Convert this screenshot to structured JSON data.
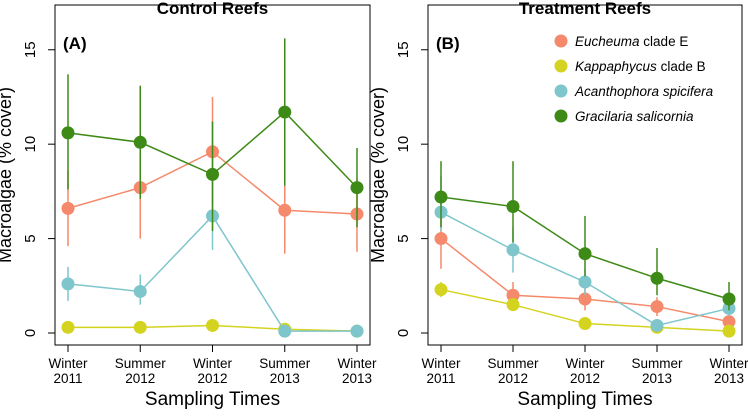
{
  "chart_data": [
    {
      "type": "line",
      "panel_label": "(A)",
      "title": "Control Reefs",
      "xlabel": "Sampling Times",
      "ylabel": "Macroalgae (% cover)",
      "ylim": [
        0,
        17
      ],
      "yticks": [
        0,
        5,
        10,
        15
      ],
      "categories": [
        {
          "line1": "Winter",
          "line2": "2011"
        },
        {
          "line1": "Summer",
          "line2": "2012"
        },
        {
          "line1": "Winter",
          "line2": "2012"
        },
        {
          "line1": "Summer",
          "line2": "2013"
        },
        {
          "line1": "Winter",
          "line2": "2013"
        }
      ],
      "series": [
        {
          "key": "eucheuma",
          "color": "#f4896b",
          "values": [
            6.6,
            7.7,
            9.6,
            6.5,
            6.3
          ],
          "lower": [
            4.6,
            5.0,
            6.8,
            4.2,
            4.3
          ],
          "upper": [
            8.6,
            10.3,
            12.5,
            8.7,
            8.2
          ]
        },
        {
          "key": "kappaphycus",
          "color": "#d4d31f",
          "values": [
            0.3,
            0.3,
            0.4,
            0.2,
            0.1
          ],
          "lower": [
            0.3,
            0.3,
            0.4,
            0.2,
            0.1
          ],
          "upper": [
            0.3,
            0.3,
            0.4,
            0.2,
            0.1
          ]
        },
        {
          "key": "acanthophora",
          "color": "#7ec6cc",
          "values": [
            2.6,
            2.2,
            6.2,
            0.1,
            0.1
          ],
          "lower": [
            1.7,
            1.5,
            4.4,
            0.1,
            0.1
          ],
          "upper": [
            3.5,
            3.1,
            8.0,
            0.1,
            0.3
          ]
        },
        {
          "key": "gracilaria",
          "color": "#3e8a17",
          "values": [
            10.6,
            10.1,
            8.4,
            11.7,
            7.7
          ],
          "lower": [
            7.6,
            7.1,
            5.4,
            7.8,
            5.6
          ],
          "upper": [
            13.7,
            13.1,
            11.2,
            15.6,
            9.8
          ]
        }
      ]
    },
    {
      "type": "line",
      "panel_label": "(B)",
      "title": "Treatment Reefs",
      "xlabel": "Sampling Times",
      "ylabel": "Macroalgae (% cover)",
      "ylim": [
        0,
        17
      ],
      "yticks": [
        0,
        5,
        10,
        15
      ],
      "categories": [
        {
          "line1": "Winter",
          "line2": "2011"
        },
        {
          "line1": "Summer",
          "line2": "2012"
        },
        {
          "line1": "Winter",
          "line2": "2012"
        },
        {
          "line1": "Summer",
          "line2": "2013"
        },
        {
          "line1": "Winter",
          "line2": "2013"
        }
      ],
      "legend": {
        "position": "top-right",
        "items": [
          {
            "key": "eucheuma",
            "italic": "Eucheuma",
            "plain": " clade E",
            "color": "#f4896b"
          },
          {
            "key": "kappaphycus",
            "italic": "Kappaphycus",
            "plain": " clade B",
            "color": "#d4d31f"
          },
          {
            "key": "acanthophora",
            "italic": "Acanthophora spicifera",
            "plain": "",
            "color": "#7ec6cc"
          },
          {
            "key": "gracilaria",
            "italic": "Gracilaria salicornia",
            "plain": "",
            "color": "#3e8a17"
          }
        ]
      },
      "series": [
        {
          "key": "eucheuma",
          "color": "#f4896b",
          "values": [
            5.0,
            2.0,
            1.8,
            1.4,
            0.6
          ],
          "lower": [
            3.4,
            1.3,
            1.2,
            0.9,
            0.4
          ],
          "upper": [
            6.6,
            2.7,
            2.4,
            1.9,
            0.8
          ]
        },
        {
          "key": "kappaphycus",
          "color": "#d4d31f",
          "values": [
            2.3,
            1.5,
            0.5,
            0.3,
            0.1
          ],
          "lower": [
            1.9,
            1.2,
            0.3,
            0.2,
            0.0
          ],
          "upper": [
            2.7,
            1.8,
            0.7,
            0.4,
            0.2
          ]
        },
        {
          "key": "acanthophora",
          "color": "#7ec6cc",
          "values": [
            6.4,
            4.4,
            2.7,
            0.4,
            1.3
          ],
          "lower": [
            5.4,
            3.2,
            2.0,
            0.2,
            0.9
          ],
          "upper": [
            8.3,
            5.6,
            3.4,
            0.6,
            1.7
          ]
        },
        {
          "key": "gracilaria",
          "color": "#3e8a17",
          "values": [
            7.2,
            6.7,
            4.2,
            2.9,
            1.8
          ],
          "lower": [
            5.6,
            4.8,
            3.0,
            2.0,
            1.2
          ],
          "upper": [
            9.1,
            9.1,
            6.2,
            4.5,
            2.7
          ]
        }
      ]
    }
  ]
}
